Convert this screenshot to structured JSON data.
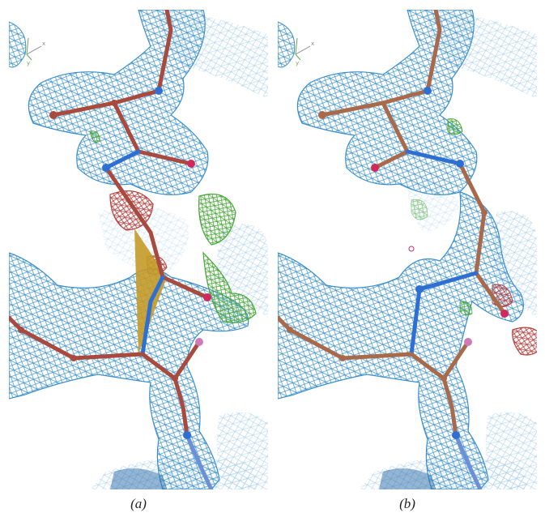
{
  "panels": [
    {
      "label": "(a)"
    },
    {
      "label": "(b)"
    }
  ],
  "axes_indicator": {
    "x": "x",
    "y": "y"
  },
  "colors": {
    "mesh_blue": "#3a8fc9",
    "mesh_light_blue": "#9cc8e6",
    "mesh_green": "#4aa83a",
    "mesh_red": "#b8403c",
    "backbone_red": "#a84a3e",
    "backbone_brown": "#a86a4a",
    "nitrogen_blue": "#2e6fd1",
    "oxygen_red": "#d02a5c",
    "sulfur_pink": "#d07ab8",
    "highlight_gold": "#c49a28",
    "axis_green": "#6aaa4a",
    "axis_grey": "#888888"
  }
}
